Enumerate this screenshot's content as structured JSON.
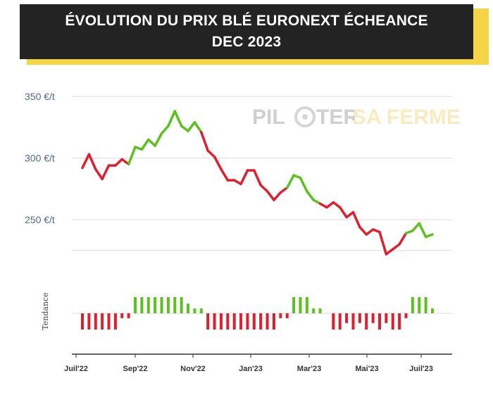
{
  "title": {
    "line1": "ÉVOLUTION DU PRIX BLÉ EURONEXT ÉCHEANCE",
    "line2": "DEC 2023"
  },
  "watermark": {
    "part1": "PIL",
    "part2": "TER",
    "part3": "SA FERME"
  },
  "colors": {
    "up": "#5cc11f",
    "down": "#e01e2e",
    "title_bg": "#232323",
    "title_shadow": "#f4d548"
  },
  "chart_data": {
    "type": "line",
    "ylim": [
      200,
      350
    ],
    "yticks": [
      {
        "value": 350,
        "label": "350 €/t"
      },
      {
        "value": 300,
        "label": "300 €/t"
      },
      {
        "value": 250,
        "label": "250 €/t"
      },
      {
        "value": 225,
        "label": ""
      }
    ],
    "xticks": [
      "Juil'22",
      "Sep'22",
      "Nov'22",
      "Jan'23",
      "Mar'23",
      "Mai'23",
      "Juil'23"
    ],
    "ylabel_tendance": "Tendance",
    "series": [
      {
        "values": [
          292,
          303,
          291,
          283,
          294,
          294,
          299,
          295,
          309,
          307,
          315,
          310,
          320,
          326,
          338,
          326,
          322,
          329,
          321,
          306,
          301,
          291,
          282,
          282,
          279,
          290,
          290,
          278,
          273,
          266,
          272,
          276,
          286,
          284,
          273,
          266,
          263,
          260,
          264,
          260,
          252,
          256,
          244,
          238,
          242,
          240,
          222,
          226,
          230,
          239,
          241,
          247,
          236,
          238
        ]
      }
    ],
    "trend": [
      -1,
      -1,
      -1,
      -1,
      -1,
      -1,
      -0.3,
      -0.3,
      1,
      1,
      1,
      1,
      1,
      1,
      1,
      1,
      0.6,
      0.3,
      0.3,
      -1,
      -1,
      -1,
      -1,
      -1,
      -1,
      -1,
      -1,
      -1,
      -1,
      -1,
      -0.3,
      -0.3,
      1,
      1,
      1,
      0.3,
      0.3,
      0,
      -1,
      -1,
      -0.6,
      -1,
      -0.6,
      -1,
      -0.6,
      -1,
      -0.6,
      -1,
      -1,
      -0.3,
      1,
      1,
      1,
      0.3
    ]
  }
}
